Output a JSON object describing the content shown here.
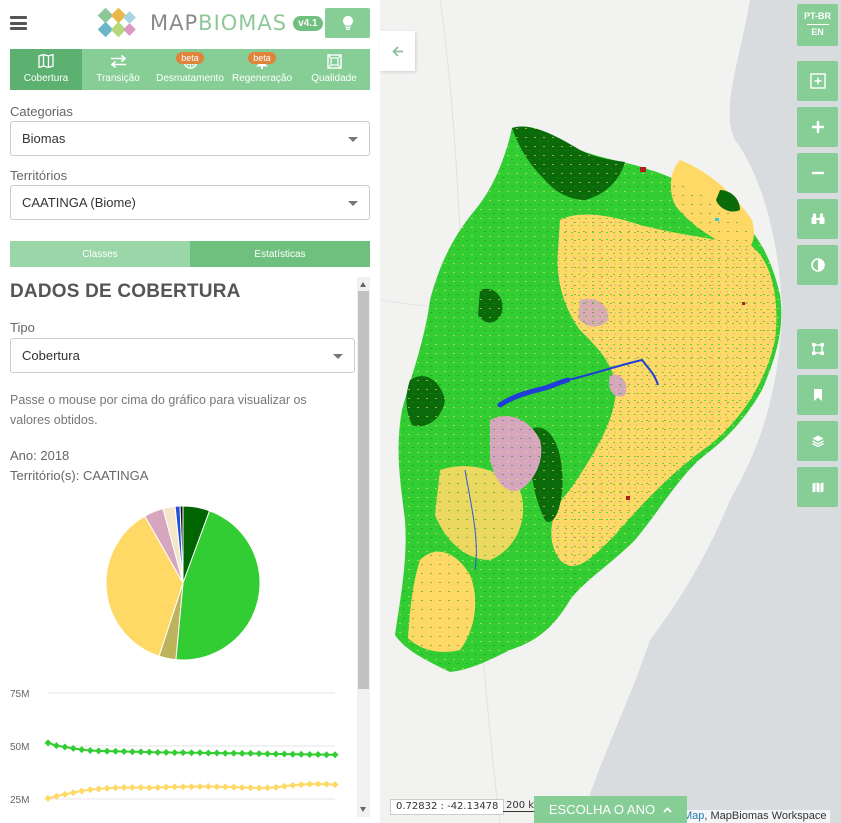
{
  "app": {
    "logo_prefix": "MAP",
    "logo_suffix": "BIOMAS",
    "version": "v4.1"
  },
  "tabs": [
    {
      "label": "Cobertura",
      "icon": "map-icon",
      "active": true,
      "badge": ""
    },
    {
      "label": "Transição",
      "icon": "transfer-icon",
      "active": false,
      "badge": ""
    },
    {
      "label": "Desmatamento",
      "icon": "deforestation-icon",
      "active": false,
      "badge": "beta"
    },
    {
      "label": "Regeneração",
      "icon": "tree-icon",
      "active": false,
      "badge": "beta"
    },
    {
      "label": "Qualidade",
      "icon": "quality-icon",
      "active": false,
      "badge": ""
    }
  ],
  "filters": {
    "categories_label": "Categorias",
    "categories_value": "Biomas",
    "territories_label": "Territórios",
    "territories_value": "CAATINGA (Biome)"
  },
  "subtabs": {
    "classes": "Classes",
    "stats": "Estatísticas"
  },
  "panel": {
    "title": "DADOS DE COBERTURA",
    "type_label": "Tipo",
    "type_value": "Cobertura",
    "help": "Passe o mouse por cima do gráfico para visualizar os valores obtidos.",
    "year_line": "Ano: 2018",
    "territory_line": "Território(s): CAATINGA"
  },
  "chart_data": [
    {
      "type": "pie",
      "slices": [
        {
          "value": 5.5,
          "color": "#006400"
        },
        {
          "value": 45,
          "color": "#32cd32"
        },
        {
          "value": 3.5,
          "color": "#bdb35c"
        },
        {
          "value": 36,
          "color": "#ffd966"
        },
        {
          "value": 4,
          "color": "#d5a6bd"
        },
        {
          "value": 2.5,
          "color": "#f5e6c9"
        },
        {
          "value": 1,
          "color": "#1f4fd8"
        },
        {
          "value": 0.6,
          "color": "#111111"
        }
      ]
    },
    {
      "type": "line",
      "y_ticks": [
        "75M",
        "50M",
        "25M"
      ],
      "ylim": [
        25,
        75
      ],
      "series": [
        {
          "color": "#32cd32",
          "values": [
            51.5,
            50.2,
            49.5,
            48.9,
            48.3,
            47.9,
            47.7,
            47.6,
            47.5,
            47.4,
            47.3,
            47.2,
            47.1,
            47.0,
            47.0,
            46.9,
            46.9,
            46.8,
            46.8,
            46.7,
            46.7,
            46.6,
            46.6,
            46.5,
            46.5,
            46.4,
            46.3,
            46.2,
            46.2,
            46.1,
            46.1,
            46.0,
            46.0,
            45.9,
            45.9
          ]
        },
        {
          "color": "#ffd966",
          "values": [
            25.3,
            26.3,
            27.2,
            28.0,
            28.8,
            29.4,
            29.8,
            30.1,
            30.3,
            30.4,
            30.4,
            30.4,
            30.3,
            30.4,
            30.6,
            30.7,
            30.8,
            30.8,
            30.9,
            30.9,
            30.8,
            30.7,
            30.6,
            30.4,
            30.3,
            30.2,
            30.3,
            30.5,
            31.0,
            31.5,
            31.8,
            32.0,
            32.1,
            32.0,
            31.8
          ]
        }
      ]
    }
  ],
  "map": {
    "language_primary": "PT-BR",
    "language_secondary": "EN",
    "coordinates": "0.72832 : -42.13478",
    "scale": "200 k",
    "year_button": "ESCOLHA O ANO",
    "attribution_link": "Map",
    "attribution_text": ", MapBiomas Workspace"
  }
}
